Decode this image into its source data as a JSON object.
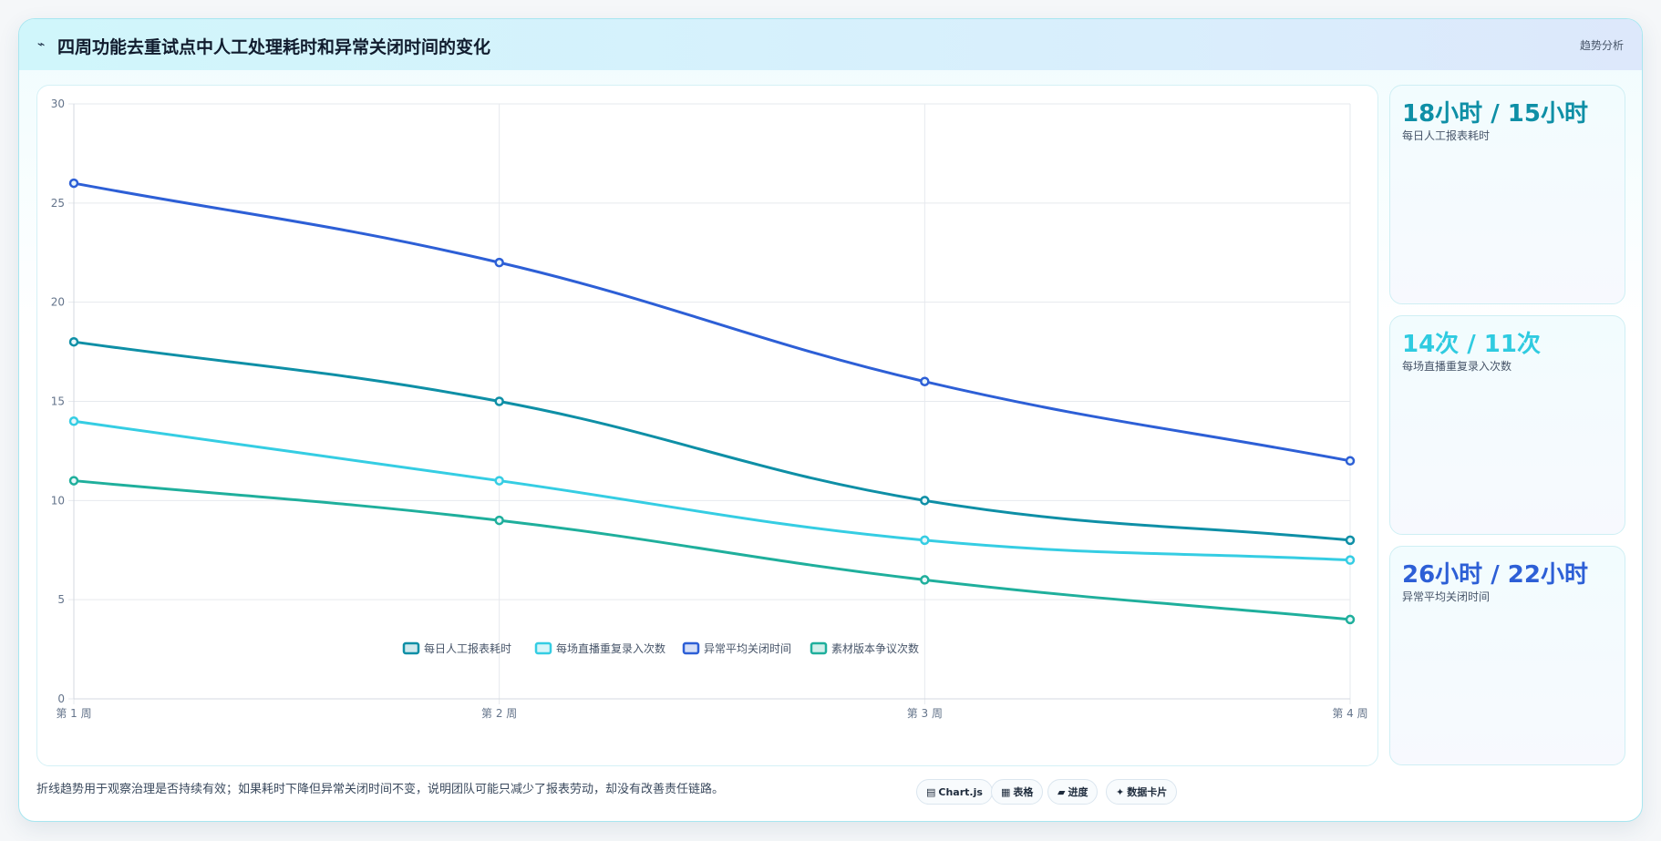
{
  "header": {
    "icon": "⌁",
    "title": "四周功能去重试点中人工处理耗时和异常关闭时间的变化",
    "tag": "趋势分析"
  },
  "chart_data": {
    "type": "line",
    "categories": [
      "第 1 周",
      "第 2 周",
      "第 3 周",
      "第 4 周"
    ],
    "ylim": [
      0,
      30
    ],
    "yticks": [
      0,
      5,
      10,
      15,
      20,
      25,
      30
    ],
    "grid": true,
    "legend_position": "bottom",
    "series": [
      {
        "name": "每日人工报表耗时",
        "values": [
          18,
          15,
          10,
          8
        ],
        "color": "#0e8fa6"
      },
      {
        "name": "每场直播重复录入次数",
        "values": [
          14,
          11,
          8,
          7
        ],
        "color": "#35cde3"
      },
      {
        "name": "异常平均关闭时间",
        "values": [
          26,
          22,
          16,
          12
        ],
        "color": "#2d5fd6"
      },
      {
        "name": "素材版本争议次数",
        "values": [
          11,
          9,
          6,
          4
        ],
        "color": "#1faf9c"
      }
    ]
  },
  "cards": [
    {
      "value": "18小时 / 15小时",
      "label": "每日人工报表耗时",
      "color": "#0e8fa6"
    },
    {
      "value": "14次 / 11次",
      "label": "每场直播重复录入次数",
      "color": "#2fcbe0"
    },
    {
      "value": "26小时 / 22小时",
      "label": "异常平均关闭时间",
      "color": "#2d5fd6"
    }
  ],
  "footnote": "折线趋势用于观察治理是否持续有效；如果耗时下降但异常关闭时间不变，说明团队可能只减少了报表劳动，却没有改善责任链路。",
  "pills": [
    {
      "icon": "▤",
      "icon_name": "chart-icon",
      "label": "Chart.js"
    },
    {
      "icon": "▦",
      "icon_name": "table-icon",
      "label": "表格"
    },
    {
      "icon": "▰",
      "icon_name": "progress-icon",
      "label": "进度"
    },
    {
      "icon": "✦",
      "icon_name": "sparkle-icon",
      "label": "数据卡片"
    }
  ]
}
